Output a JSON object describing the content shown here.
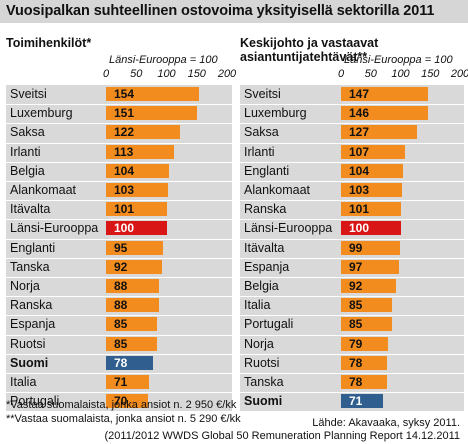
{
  "title": "Vuosipalkan suhteellinen ostovoima yksityisellä sektorilla 2011",
  "colors": {
    "normal": "#f28c1e",
    "reference": "#d91616",
    "finland": "#2f5e8f",
    "row_background": "#d9d9d9",
    "title_background": "#d6d6d6"
  },
  "footnotes": [
    "*Vastaa suomalaista, jonka ansiot n. 2 950 €/kk",
    "**Vastaa suomalaista, jonka ansiot n. 5 290 €/kk"
  ],
  "source_lines": [
    "Lähde: Akavaaka, syksy 2011.",
    "(2011/2012 WWDS Global 50 Remuneration Planning Report 14.12.2011"
  ],
  "chart_data": [
    {
      "type": "bar",
      "orientation": "horizontal",
      "title": "Toimihenkilöt*",
      "xlabel": "Länsi-Eurooppa = 100",
      "xlim": [
        0,
        200
      ],
      "ticks": [
        "0",
        "50",
        "100",
        "150",
        "200"
      ],
      "categories": [
        "Sveitsi",
        "Luxemburg",
        "Saksa",
        "Irlanti",
        "Belgia",
        "Alankomaat",
        "Itävalta",
        "Länsi-Eurooppa",
        "Englanti",
        "Tanska",
        "Norja",
        "Ranska",
        "Espanja",
        "Ruotsi",
        "Suomi",
        "Italia",
        "Portugali"
      ],
      "values": [
        154,
        151,
        122,
        113,
        104,
        103,
        101,
        100,
        95,
        92,
        88,
        88,
        85,
        85,
        78,
        71,
        70
      ],
      "highlight": {
        "reference": "Länsi-Eurooppa",
        "finland": "Suomi"
      }
    },
    {
      "type": "bar",
      "orientation": "horizontal",
      "title": "Keskijohto ja vastaavat\nasiantuntijatehtävät**",
      "xlabel": "Länsi-Eurooppa = 100",
      "xlim": [
        0,
        200
      ],
      "ticks": [
        "0",
        "50",
        "100",
        "150",
        "200"
      ],
      "categories": [
        "Sveitsi",
        "Luxemburg",
        "Saksa",
        "Irlanti",
        "Englanti",
        "Alankomaat",
        "Ranska",
        "Länsi-Eurooppa",
        "Itävalta",
        "Espanja",
        "Belgia",
        "Italia",
        "Portugali",
        "Norja",
        "Ruotsi",
        "Tanska",
        "Suomi"
      ],
      "values": [
        147,
        146,
        127,
        107,
        104,
        103,
        101,
        100,
        99,
        97,
        92,
        85,
        85,
        79,
        78,
        78,
        71
      ],
      "highlight": {
        "reference": "Länsi-Eurooppa",
        "finland": "Suomi"
      }
    }
  ]
}
